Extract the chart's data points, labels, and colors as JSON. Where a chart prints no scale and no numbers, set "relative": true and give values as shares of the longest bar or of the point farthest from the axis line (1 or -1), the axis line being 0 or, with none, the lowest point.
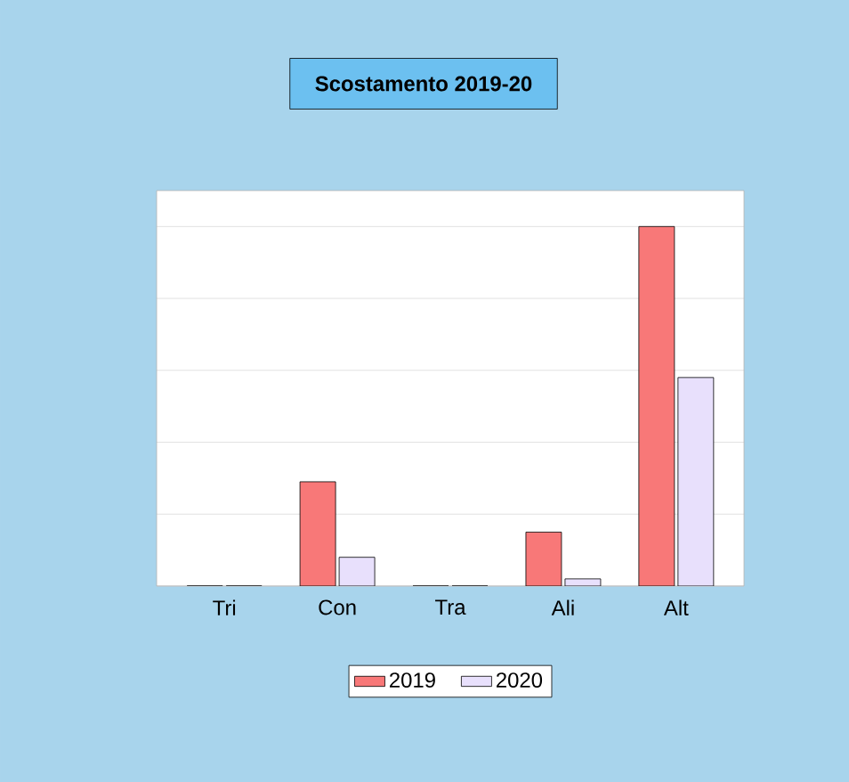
{
  "chart_data": {
    "type": "bar",
    "title": "Scostamento 2019-20",
    "categories": [
      "Tri",
      "Con",
      "Tra",
      "Ali",
      "Alt"
    ],
    "relative": true,
    "grid": "y",
    "legend": "bottom",
    "series": [
      {
        "name": "2019",
        "color": "#f87878",
        "values": [
          0,
          0.29,
          0,
          0.15,
          1
        ]
      },
      {
        "name": "2020",
        "color": "#e8e0fc",
        "values": [
          0,
          0.08,
          0,
          0.02,
          0.58
        ]
      }
    ]
  }
}
